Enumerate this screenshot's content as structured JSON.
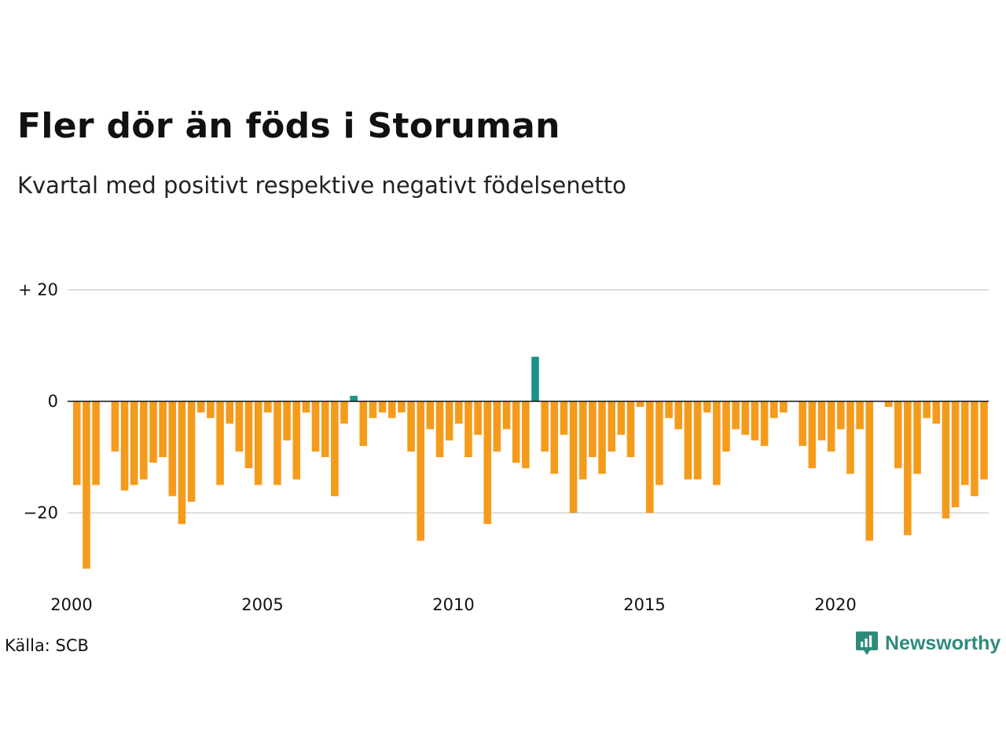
{
  "header": {
    "title": "Fler dör än föds i Storuman",
    "subtitle": "Kvartal med positivt respektive negativt födelsenetto"
  },
  "footer": {
    "source": "Källa: SCB",
    "brand": "Newsworthy",
    "brand_icon": "newsworthy-logo-icon"
  },
  "colors": {
    "negative": "#f59b1c",
    "positive": "#1a9484",
    "grid": "#dddddd",
    "zero_line": "#111111",
    "brand": "#2e8b7c"
  },
  "chart_data": {
    "type": "bar",
    "title": "Fler dör än föds i Storuman",
    "subtitle": "Kvartal med positivt respektive negativt födelsenetto",
    "xlabel": "",
    "ylabel": "",
    "ylim": [
      -30,
      20
    ],
    "y_ticks": [
      {
        "value": 20,
        "label": "+ 20"
      },
      {
        "value": 0,
        "label": "0"
      },
      {
        "value": -20,
        "label": "−20"
      }
    ],
    "x_ticks": [
      {
        "value": 2000,
        "label": "2000"
      },
      {
        "value": 2005,
        "label": "2005"
      },
      {
        "value": 2010,
        "label": "2010"
      },
      {
        "value": 2015,
        "label": "2015"
      },
      {
        "value": 2020,
        "label": "2020"
      }
    ],
    "grid": true,
    "start_year": 2000,
    "quarters_per_year": 4,
    "values": [
      -15,
      -30,
      -15,
      0,
      -9,
      -16,
      -15,
      -14,
      -11,
      -10,
      -17,
      -22,
      -18,
      -2,
      -3,
      -15,
      -4,
      -9,
      -12,
      -15,
      -2,
      -15,
      -7,
      -14,
      -2,
      -9,
      -10,
      -17,
      -4,
      1,
      -8,
      -3,
      -2,
      -3,
      -2,
      -9,
      -25,
      -5,
      -10,
      -7,
      -4,
      -10,
      -6,
      -22,
      -9,
      -5,
      -11,
      -12,
      8,
      -9,
      -13,
      -6,
      -20,
      -14,
      -10,
      -13,
      -9,
      -6,
      -10,
      -1,
      -20,
      -15,
      -3,
      -5,
      -14,
      -14,
      -2,
      -15,
      -9,
      -5,
      -6,
      -7,
      -8,
      -3,
      -2,
      0,
      -8,
      -12,
      -7,
      -9,
      -5,
      -13,
      -5,
      -25,
      0,
      -1,
      -12,
      -24,
      -13,
      -3,
      -4,
      -21,
      -19,
      -15,
      -17,
      -14
    ]
  }
}
